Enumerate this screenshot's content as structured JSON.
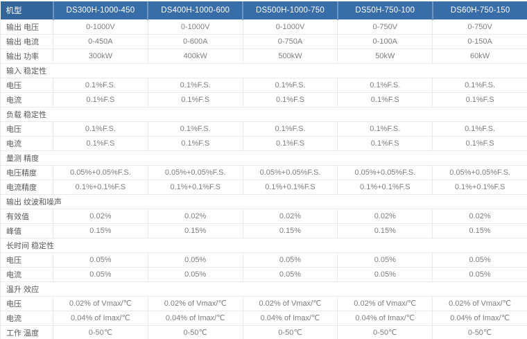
{
  "colors": {
    "header_bg": "#386da7",
    "header_label_bg": "#33659b",
    "header_divider": "#6f95c3",
    "header_text": "#ffffff",
    "body_border": "#e4e4e4",
    "label_text": "#585858",
    "value_text": "#7d7d7d",
    "background": "#ffffff"
  },
  "table": {
    "header": [
      "机型",
      "DS300H-1000-450",
      "DS400H-1000-600",
      "DS500H-1000-750",
      "DS50H-750-100",
      "DS60H-750-150"
    ],
    "rows": [
      {
        "type": "data",
        "label": "输出 电压",
        "values": [
          "0-1000V",
          "0-1000V",
          "0-1000V",
          "0-750V",
          "0-750V"
        ]
      },
      {
        "type": "data",
        "label": "输出 电流",
        "values": [
          "0-450A",
          "0-600A",
          "0-750A",
          "0-100A",
          "0-150A"
        ]
      },
      {
        "type": "data",
        "label": "输出 功率",
        "values": [
          "300kW",
          "400kW",
          "500kW",
          "50kW",
          "60kW"
        ]
      },
      {
        "type": "section",
        "label": "输入 稳定性"
      },
      {
        "type": "data",
        "label": "电压",
        "values": [
          "0.1%F.S.",
          "0.1%F.S.",
          "0.1%F.S.",
          "0.1%F.S.",
          "0.1%F.S."
        ]
      },
      {
        "type": "data",
        "label": "电流",
        "values": [
          "0.1%F.S",
          "0.1%F.S",
          "0.1%F.S",
          "0.1%F.S",
          "0.1%F.S"
        ]
      },
      {
        "type": "section",
        "label": "负载 稳定性"
      },
      {
        "type": "data",
        "label": "电压",
        "values": [
          "0.1%F.S.",
          "0.1%F.S.",
          "0.1%F.S.",
          "0.1%F.S.",
          "0.1%F.S."
        ]
      },
      {
        "type": "data",
        "label": "电流",
        "values": [
          "0.1%F.S",
          "0.1%F.S",
          "0.1%F.S",
          "0.1%F.S",
          "0.1%F.S"
        ]
      },
      {
        "type": "section",
        "label": "量测 精度"
      },
      {
        "type": "data",
        "label": "电压精度",
        "values": [
          "0.05%+0.05%F.S.",
          "0.05%+0.05%F.S.",
          "0.05%+0.05%F.S.",
          "0.05%+0.05%F.S.",
          "0.05%+0.05%F.S."
        ]
      },
      {
        "type": "data",
        "label": "电流精度",
        "values": [
          "0.1%+0.1%F.S",
          "0.1%+0.1%F.S",
          "0.1%+0.1%F.S",
          "0.1%+0.1%F.S",
          "0.1%+0.1%F.S"
        ]
      },
      {
        "type": "section",
        "label": "输出 纹波和噪声"
      },
      {
        "type": "data",
        "label": "有效值",
        "values": [
          "0.02%",
          "0.02%",
          "0.02%",
          "0.02%",
          "0.02%"
        ]
      },
      {
        "type": "data",
        "label": "峰值",
        "values": [
          "0.15%",
          "0.15%",
          "0.15%",
          "0.15%",
          "0.15%"
        ]
      },
      {
        "type": "section",
        "label": "长时间 稳定性"
      },
      {
        "type": "data",
        "label": "电压",
        "values": [
          "0.05%",
          "0.05%",
          "0.05%",
          "0.05%",
          "0.05%"
        ]
      },
      {
        "type": "data",
        "label": "电流",
        "values": [
          "0.05%",
          "0.05%",
          "0.05%",
          "0.05%",
          "0.05%"
        ]
      },
      {
        "type": "section",
        "label": "温升 效应"
      },
      {
        "type": "data",
        "label": "电压",
        "values": [
          "0.02% of Vmax/℃",
          "0.02% of Vmax/℃",
          "0.02% of Vmax/℃",
          "0.02% of Vmax/℃",
          "0.02% of Vmax/℃"
        ]
      },
      {
        "type": "data",
        "label": "电流",
        "values": [
          "0.04% of Imax/℃",
          "0.04% of Imax/℃",
          "0.04% of Imax/℃",
          "0.04% of Imax/℃",
          "0.04% of Imax/℃"
        ]
      },
      {
        "type": "data",
        "label": "工作 温度",
        "values": [
          "0-50℃",
          "0-50℃",
          "0-50℃",
          "0-50℃",
          "0-50℃"
        ]
      }
    ]
  }
}
